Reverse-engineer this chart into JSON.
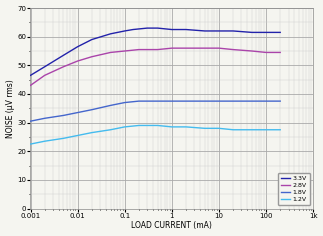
{
  "xlabel": "LOAD CURRENT (mA)",
  "ylabel": "NOISE (μV rms)",
  "xlim": [
    0.001,
    1000
  ],
  "ylim": [
    0,
    70
  ],
  "yticks": [
    0,
    10,
    20,
    30,
    40,
    50,
    60,
    70
  ],
  "bg_color": "#f5f5f0",
  "grid_major_color": "#aaaaaa",
  "grid_minor_color": "#cccccc",
  "series": [
    {
      "label": "3.3V",
      "color": "#2222aa",
      "points": [
        [
          0.001,
          46.5
        ],
        [
          0.002,
          49.5
        ],
        [
          0.005,
          53.5
        ],
        [
          0.01,
          56.5
        ],
        [
          0.02,
          59.0
        ],
        [
          0.05,
          61.0
        ],
        [
          0.1,
          62.0
        ],
        [
          0.15,
          62.5
        ],
        [
          0.3,
          63.0
        ],
        [
          0.5,
          63.0
        ],
        [
          1,
          62.5
        ],
        [
          2,
          62.5
        ],
        [
          5,
          62.0
        ],
        [
          10,
          62.0
        ],
        [
          20,
          62.0
        ],
        [
          50,
          61.5
        ],
        [
          100,
          61.5
        ],
        [
          200,
          61.5
        ]
      ]
    },
    {
      "label": "2.8V",
      "color": "#aa44aa",
      "points": [
        [
          0.001,
          43.0
        ],
        [
          0.002,
          46.5
        ],
        [
          0.005,
          49.5
        ],
        [
          0.01,
          51.5
        ],
        [
          0.02,
          53.0
        ],
        [
          0.05,
          54.5
        ],
        [
          0.1,
          55.0
        ],
        [
          0.2,
          55.5
        ],
        [
          0.5,
          55.5
        ],
        [
          1,
          56.0
        ],
        [
          2,
          56.0
        ],
        [
          5,
          56.0
        ],
        [
          10,
          56.0
        ],
        [
          20,
          55.5
        ],
        [
          50,
          55.0
        ],
        [
          100,
          54.5
        ],
        [
          200,
          54.5
        ]
      ]
    },
    {
      "label": "1.8V",
      "color": "#4466cc",
      "points": [
        [
          0.001,
          30.5
        ],
        [
          0.002,
          31.5
        ],
        [
          0.005,
          32.5
        ],
        [
          0.01,
          33.5
        ],
        [
          0.02,
          34.5
        ],
        [
          0.05,
          36.0
        ],
        [
          0.1,
          37.0
        ],
        [
          0.2,
          37.5
        ],
        [
          0.5,
          37.5
        ],
        [
          1,
          37.5
        ],
        [
          2,
          37.5
        ],
        [
          5,
          37.5
        ],
        [
          10,
          37.5
        ],
        [
          20,
          37.5
        ],
        [
          50,
          37.5
        ],
        [
          100,
          37.5
        ],
        [
          200,
          37.5
        ]
      ]
    },
    {
      "label": "1.2V",
      "color": "#44bbee",
      "points": [
        [
          0.001,
          22.5
        ],
        [
          0.002,
          23.5
        ],
        [
          0.005,
          24.5
        ],
        [
          0.01,
          25.5
        ],
        [
          0.02,
          26.5
        ],
        [
          0.05,
          27.5
        ],
        [
          0.1,
          28.5
        ],
        [
          0.2,
          29.0
        ],
        [
          0.5,
          29.0
        ],
        [
          1,
          28.5
        ],
        [
          2,
          28.5
        ],
        [
          5,
          28.0
        ],
        [
          10,
          28.0
        ],
        [
          20,
          27.5
        ],
        [
          50,
          27.5
        ],
        [
          100,
          27.5
        ],
        [
          200,
          27.5
        ]
      ]
    }
  ]
}
